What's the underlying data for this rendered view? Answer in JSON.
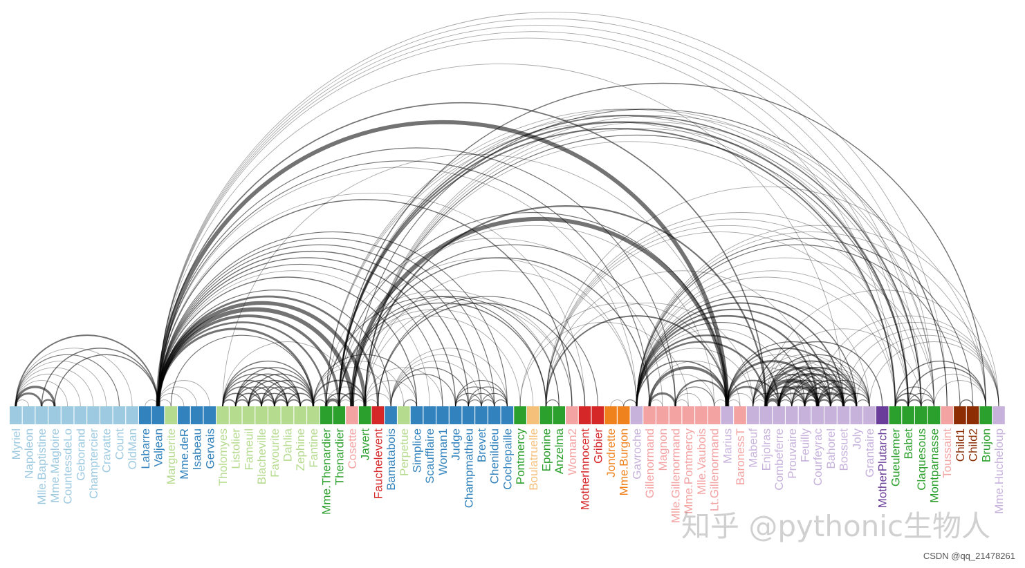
{
  "chart_data": {
    "type": "arc",
    "nodes": [
      {
        "name": "Myriel",
        "group": 1
      },
      {
        "name": "Napoleon",
        "group": 1
      },
      {
        "name": "Mlle.Baptistine",
        "group": 1
      },
      {
        "name": "Mme.Magloire",
        "group": 1
      },
      {
        "name": "CountessdeLo",
        "group": 1
      },
      {
        "name": "Geborand",
        "group": 1
      },
      {
        "name": "Champtercier",
        "group": 1
      },
      {
        "name": "Cravatte",
        "group": 1
      },
      {
        "name": "Count",
        "group": 1
      },
      {
        "name": "OldMan",
        "group": 1
      },
      {
        "name": "Labarre",
        "group": 2
      },
      {
        "name": "Valjean",
        "group": 2
      },
      {
        "name": "Marguerite",
        "group": 3
      },
      {
        "name": "Mme.deR",
        "group": 2
      },
      {
        "name": "Isabeau",
        "group": 2
      },
      {
        "name": "Gervais",
        "group": 2
      },
      {
        "name": "Tholomyes",
        "group": 3
      },
      {
        "name": "Listolier",
        "group": 3
      },
      {
        "name": "Fameuil",
        "group": 3
      },
      {
        "name": "Blacheville",
        "group": 3
      },
      {
        "name": "Favourite",
        "group": 3
      },
      {
        "name": "Dahlia",
        "group": 3
      },
      {
        "name": "Zephine",
        "group": 3
      },
      {
        "name": "Fantine",
        "group": 3
      },
      {
        "name": "Mme.Thenardier",
        "group": 4
      },
      {
        "name": "Thenardier",
        "group": 4
      },
      {
        "name": "Cosette",
        "group": 5
      },
      {
        "name": "Javert",
        "group": 4
      },
      {
        "name": "Fauchelevent",
        "group": 0
      },
      {
        "name": "Bamatabois",
        "group": 2
      },
      {
        "name": "Perpetue",
        "group": 3
      },
      {
        "name": "Simplice",
        "group": 2
      },
      {
        "name": "Scaufflaire",
        "group": 2
      },
      {
        "name": "Woman1",
        "group": 2
      },
      {
        "name": "Judge",
        "group": 2
      },
      {
        "name": "Champmathieu",
        "group": 2
      },
      {
        "name": "Brevet",
        "group": 2
      },
      {
        "name": "Chenildieu",
        "group": 2
      },
      {
        "name": "Cochepaille",
        "group": 2
      },
      {
        "name": "Pontmercy",
        "group": 4
      },
      {
        "name": "Boulatruelle",
        "group": 6
      },
      {
        "name": "Eponine",
        "group": 4
      },
      {
        "name": "Anzelma",
        "group": 4
      },
      {
        "name": "Woman2",
        "group": 5
      },
      {
        "name": "MotherInnocent",
        "group": 0
      },
      {
        "name": "Gribier",
        "group": 0
      },
      {
        "name": "Jondrette",
        "group": 7
      },
      {
        "name": "Mme.Burgon",
        "group": 7
      },
      {
        "name": "Gavroche",
        "group": 8
      },
      {
        "name": "Gillenormand",
        "group": 5
      },
      {
        "name": "Magnon",
        "group": 5
      },
      {
        "name": "Mlle.Gillenormand",
        "group": 5
      },
      {
        "name": "Mme.Pontmercy",
        "group": 5
      },
      {
        "name": "Mlle.Vaubois",
        "group": 5
      },
      {
        "name": "Lt.Gillenormand",
        "group": 5
      },
      {
        "name": "Marius",
        "group": 8
      },
      {
        "name": "BaronessT",
        "group": 5
      },
      {
        "name": "Mabeuf",
        "group": 8
      },
      {
        "name": "Enjolras",
        "group": 8
      },
      {
        "name": "Combeferre",
        "group": 8
      },
      {
        "name": "Prouvaire",
        "group": 8
      },
      {
        "name": "Feuilly",
        "group": 8
      },
      {
        "name": "Courfeyrac",
        "group": 8
      },
      {
        "name": "Bahorel",
        "group": 8
      },
      {
        "name": "Bossuet",
        "group": 8
      },
      {
        "name": "Joly",
        "group": 8
      },
      {
        "name": "Grantaire",
        "group": 8
      },
      {
        "name": "MotherPlutarch",
        "group": 9
      },
      {
        "name": "Gueulemer",
        "group": 4
      },
      {
        "name": "Babet",
        "group": 4
      },
      {
        "name": "Claquesous",
        "group": 4
      },
      {
        "name": "Montparnasse",
        "group": 4
      },
      {
        "name": "Toussaint",
        "group": 5
      },
      {
        "name": "Child1",
        "group": 10
      },
      {
        "name": "Child2",
        "group": 10
      },
      {
        "name": "Brujon",
        "group": 4
      },
      {
        "name": "Mme.Hucheloup",
        "group": 8
      }
    ],
    "group_colors": {
      "0": "#d62728",
      "1": "#9ecae1",
      "2": "#3182bd",
      "3": "#b5db8f",
      "4": "#2ca02c",
      "5": "#f4a3a3",
      "6": "#f5c07a",
      "7": "#f0821e",
      "8": "#c7b2dc",
      "9": "#6a3d9a",
      "10": "#8c2d04"
    },
    "links": [
      [
        1,
        0,
        1
      ],
      [
        2,
        0,
        8
      ],
      [
        3,
        0,
        10
      ],
      [
        3,
        2,
        6
      ],
      [
        4,
        0,
        1
      ],
      [
        5,
        0,
        1
      ],
      [
        6,
        0,
        1
      ],
      [
        7,
        0,
        1
      ],
      [
        8,
        0,
        2
      ],
      [
        9,
        0,
        1
      ],
      [
        11,
        10,
        1
      ],
      [
        11,
        3,
        3
      ],
      [
        11,
        2,
        3
      ],
      [
        11,
        0,
        5
      ],
      [
        12,
        11,
        1
      ],
      [
        13,
        11,
        1
      ],
      [
        14,
        11,
        1
      ],
      [
        15,
        11,
        1
      ],
      [
        17,
        16,
        4
      ],
      [
        18,
        16,
        4
      ],
      [
        18,
        17,
        4
      ],
      [
        19,
        16,
        4
      ],
      [
        19,
        17,
        4
      ],
      [
        19,
        18,
        4
      ],
      [
        20,
        16,
        3
      ],
      [
        20,
        17,
        3
      ],
      [
        20,
        18,
        3
      ],
      [
        20,
        19,
        4
      ],
      [
        21,
        16,
        3
      ],
      [
        21,
        17,
        3
      ],
      [
        21,
        18,
        3
      ],
      [
        21,
        19,
        3
      ],
      [
        21,
        20,
        5
      ],
      [
        22,
        16,
        3
      ],
      [
        22,
        17,
        3
      ],
      [
        22,
        18,
        3
      ],
      [
        22,
        19,
        3
      ],
      [
        22,
        20,
        4
      ],
      [
        22,
        21,
        4
      ],
      [
        23,
        16,
        3
      ],
      [
        23,
        17,
        3
      ],
      [
        23,
        18,
        3
      ],
      [
        23,
        19,
        3
      ],
      [
        23,
        20,
        4
      ],
      [
        23,
        21,
        4
      ],
      [
        23,
        22,
        4
      ],
      [
        23,
        12,
        2
      ],
      [
        23,
        11,
        9
      ],
      [
        24,
        23,
        2
      ],
      [
        24,
        11,
        7
      ],
      [
        25,
        24,
        13
      ],
      [
        25,
        23,
        1
      ],
      [
        25,
        11,
        12
      ],
      [
        26,
        24,
        4
      ],
      [
        26,
        11,
        31
      ],
      [
        26,
        16,
        1
      ],
      [
        26,
        25,
        1
      ],
      [
        27,
        11,
        17
      ],
      [
        27,
        23,
        5
      ],
      [
        27,
        25,
        5
      ],
      [
        27,
        24,
        1
      ],
      [
        27,
        26,
        1
      ],
      [
        28,
        11,
        8
      ],
      [
        28,
        27,
        1
      ],
      [
        29,
        23,
        1
      ],
      [
        29,
        27,
        1
      ],
      [
        29,
        11,
        2
      ],
      [
        30,
        23,
        1
      ],
      [
        31,
        30,
        2
      ],
      [
        31,
        11,
        3
      ],
      [
        31,
        23,
        2
      ],
      [
        31,
        27,
        1
      ],
      [
        32,
        11,
        1
      ],
      [
        33,
        11,
        2
      ],
      [
        33,
        27,
        1
      ],
      [
        34,
        11,
        3
      ],
      [
        34,
        29,
        2
      ],
      [
        35,
        11,
        3
      ],
      [
        35,
        34,
        3
      ],
      [
        35,
        29,
        2
      ],
      [
        36,
        34,
        2
      ],
      [
        36,
        35,
        2
      ],
      [
        36,
        11,
        2
      ],
      [
        36,
        29,
        1
      ],
      [
        37,
        34,
        2
      ],
      [
        37,
        35,
        2
      ],
      [
        37,
        36,
        2
      ],
      [
        37,
        11,
        2
      ],
      [
        37,
        29,
        1
      ],
      [
        38,
        34,
        2
      ],
      [
        38,
        35,
        2
      ],
      [
        38,
        36,
        2
      ],
      [
        38,
        37,
        2
      ],
      [
        38,
        11,
        2
      ],
      [
        38,
        29,
        1
      ],
      [
        39,
        25,
        1
      ],
      [
        40,
        25,
        1
      ],
      [
        41,
        24,
        2
      ],
      [
        41,
        25,
        3
      ],
      [
        42,
        41,
        2
      ],
      [
        42,
        25,
        2
      ],
      [
        42,
        24,
        1
      ],
      [
        43,
        11,
        3
      ],
      [
        43,
        26,
        1
      ],
      [
        43,
        27,
        1
      ],
      [
        44,
        28,
        3
      ],
      [
        44,
        11,
        1
      ],
      [
        45,
        28,
        2
      ],
      [
        47,
        46,
        1
      ],
      [
        48,
        47,
        2
      ],
      [
        48,
        25,
        1
      ],
      [
        48,
        27,
        1
      ],
      [
        48,
        11,
        1
      ],
      [
        49,
        26,
        3
      ],
      [
        49,
        11,
        2
      ],
      [
        50,
        49,
        1
      ],
      [
        50,
        24,
        1
      ],
      [
        51,
        49,
        9
      ],
      [
        51,
        26,
        2
      ],
      [
        51,
        11,
        2
      ],
      [
        52,
        51,
        1
      ],
      [
        52,
        39,
        1
      ],
      [
        53,
        51,
        1
      ],
      [
        54,
        51,
        2
      ],
      [
        54,
        49,
        1
      ],
      [
        54,
        26,
        1
      ],
      [
        55,
        51,
        6
      ],
      [
        55,
        49,
        12
      ],
      [
        55,
        39,
        1
      ],
      [
        55,
        54,
        1
      ],
      [
        55,
        26,
        21
      ],
      [
        55,
        11,
        19
      ],
      [
        55,
        16,
        1
      ],
      [
        55,
        25,
        2
      ],
      [
        55,
        41,
        5
      ],
      [
        55,
        48,
        4
      ],
      [
        56,
        49,
        1
      ],
      [
        56,
        55,
        1
      ],
      [
        57,
        55,
        1
      ],
      [
        57,
        41,
        1
      ],
      [
        57,
        48,
        1
      ],
      [
        58,
        55,
        7
      ],
      [
        58,
        48,
        7
      ],
      [
        58,
        27,
        6
      ],
      [
        58,
        57,
        1
      ],
      [
        58,
        11,
        4
      ],
      [
        59,
        58,
        15
      ],
      [
        59,
        55,
        5
      ],
      [
        59,
        48,
        6
      ],
      [
        59,
        57,
        2
      ],
      [
        60,
        48,
        1
      ],
      [
        60,
        58,
        4
      ],
      [
        60,
        59,
        2
      ],
      [
        61,
        48,
        2
      ],
      [
        61,
        58,
        6
      ],
      [
        61,
        60,
        2
      ],
      [
        61,
        59,
        5
      ],
      [
        61,
        57,
        1
      ],
      [
        61,
        55,
        1
      ],
      [
        62,
        55,
        9
      ],
      [
        62,
        58,
        17
      ],
      [
        62,
        59,
        13
      ],
      [
        62,
        48,
        7
      ],
      [
        62,
        57,
        2
      ],
      [
        62,
        41,
        1
      ],
      [
        62,
        61,
        6
      ],
      [
        62,
        60,
        3
      ],
      [
        63,
        59,
        5
      ],
      [
        63,
        48,
        5
      ],
      [
        63,
        62,
        6
      ],
      [
        63,
        57,
        2
      ],
      [
        63,
        58,
        4
      ],
      [
        63,
        61,
        3
      ],
      [
        63,
        60,
        2
      ],
      [
        63,
        55,
        1
      ],
      [
        64,
        55,
        5
      ],
      [
        64,
        62,
        12
      ],
      [
        64,
        48,
        5
      ],
      [
        64,
        63,
        4
      ],
      [
        64,
        58,
        10
      ],
      [
        64,
        61,
        6
      ],
      [
        64,
        60,
        2
      ],
      [
        64,
        59,
        9
      ],
      [
        64,
        57,
        1
      ],
      [
        64,
        11,
        1
      ],
      [
        65,
        63,
        5
      ],
      [
        65,
        64,
        7
      ],
      [
        65,
        48,
        3
      ],
      [
        65,
        62,
        5
      ],
      [
        65,
        58,
        5
      ],
      [
        65,
        61,
        5
      ],
      [
        65,
        60,
        2
      ],
      [
        65,
        59,
        5
      ],
      [
        65,
        57,
        1
      ],
      [
        65,
        55,
        2
      ],
      [
        66,
        64,
        3
      ],
      [
        66,
        58,
        3
      ],
      [
        66,
        59,
        1
      ],
      [
        66,
        62,
        2
      ],
      [
        66,
        65,
        2
      ],
      [
        66,
        48,
        1
      ],
      [
        66,
        63,
        1
      ],
      [
        66,
        61,
        1
      ],
      [
        66,
        60,
        1
      ],
      [
        67,
        57,
        3
      ],
      [
        68,
        25,
        5
      ],
      [
        68,
        11,
        1
      ],
      [
        68,
        24,
        1
      ],
      [
        68,
        27,
        1
      ],
      [
        68,
        48,
        1
      ],
      [
        68,
        41,
        1
      ],
      [
        69,
        25,
        6
      ],
      [
        69,
        68,
        6
      ],
      [
        69,
        11,
        1
      ],
      [
        69,
        24,
        1
      ],
      [
        69,
        27,
        2
      ],
      [
        69,
        48,
        1
      ],
      [
        69,
        41,
        1
      ],
      [
        70,
        25,
        4
      ],
      [
        70,
        69,
        4
      ],
      [
        70,
        68,
        4
      ],
      [
        70,
        11,
        1
      ],
      [
        70,
        24,
        1
      ],
      [
        70,
        27,
        1
      ],
      [
        70,
        41,
        1
      ],
      [
        70,
        58,
        1
      ],
      [
        71,
        27,
        1
      ],
      [
        71,
        69,
        2
      ],
      [
        71,
        68,
        2
      ],
      [
        71,
        70,
        2
      ],
      [
        71,
        11,
        1
      ],
      [
        71,
        48,
        1
      ],
      [
        71,
        41,
        1
      ],
      [
        71,
        25,
        1
      ],
      [
        72,
        26,
        2
      ],
      [
        72,
        27,
        1
      ],
      [
        72,
        11,
        1
      ],
      [
        73,
        48,
        2
      ],
      [
        74,
        48,
        2
      ],
      [
        74,
        73,
        3
      ],
      [
        75,
        69,
        3
      ],
      [
        75,
        68,
        3
      ],
      [
        75,
        25,
        3
      ],
      [
        75,
        48,
        1
      ],
      [
        75,
        41,
        1
      ],
      [
        75,
        70,
        1
      ],
      [
        75,
        71,
        1
      ],
      [
        76,
        64,
        1
      ],
      [
        76,
        65,
        1
      ],
      [
        76,
        66,
        1
      ],
      [
        76,
        63,
        1
      ],
      [
        76,
        62,
        1
      ],
      [
        76,
        48,
        1
      ],
      [
        76,
        58,
        1
      ]
    ]
  },
  "watermark": "知乎 @pythonic生物人",
  "credit": "CSDN @qq_21478261"
}
